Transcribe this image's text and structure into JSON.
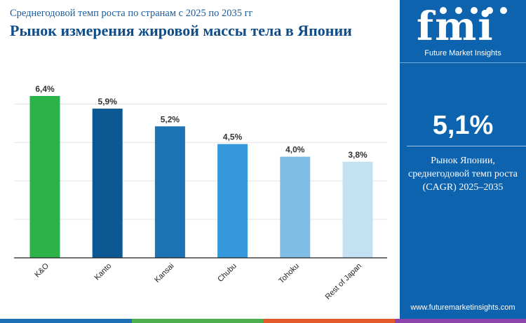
{
  "header": {
    "subtitle": "Среднегодовой темп роста по странам с 2025 по 2035 гг",
    "title": "Рынок измерения жировой массы тела в Японии"
  },
  "brand": {
    "logo_letters": "fmi",
    "logo_text": "Future Market Insights",
    "website": "www.futuremarketinsights.com"
  },
  "summary": {
    "cagr_value": "5,1%",
    "desc_line1": "Рынок Японии,",
    "desc_line2": "среднегодовой темп роста",
    "desc_line3": "(CAGR) 2025–2035"
  },
  "colors": {
    "panel": "#0d63ad",
    "title": "#0f4c8a",
    "footer": [
      "#1f6fb5",
      "#4caf50",
      "#e55a2b",
      "#8e44ad"
    ]
  },
  "chart_data": {
    "type": "bar",
    "title": "",
    "xlabel": "",
    "ylabel": "",
    "categories": [
      "K&O",
      "Kanto",
      "Kansai",
      "Chubu",
      "Tohoku",
      "Rest of Japan"
    ],
    "values": [
      6.4,
      5.9,
      5.2,
      4.5,
      4.0,
      3.8
    ],
    "labels": [
      "6,4%",
      "5,9%",
      "5,2%",
      "4,5%",
      "4,0%",
      "3,8%"
    ],
    "colors": [
      "#2bb34a",
      "#0b5892",
      "#1d74b5",
      "#3498db",
      "#80bde5",
      "#c4e0f3"
    ],
    "ylim": [
      0,
      6.4
    ],
    "grid": true,
    "legend": "none"
  }
}
